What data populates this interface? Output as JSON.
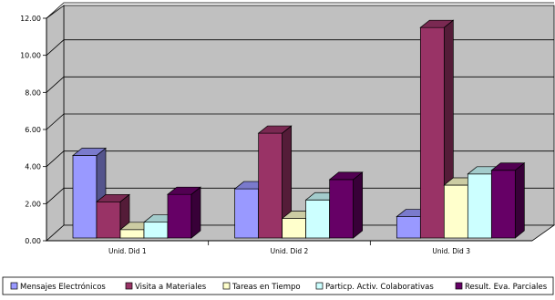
{
  "chart_data": {
    "type": "bar",
    "categories": [
      "Unid. Did 1",
      "Unid. Did 2",
      "Unid. Did 3"
    ],
    "ylim": [
      0,
      12
    ],
    "yticks": [
      "0.00",
      "2.00",
      "4.00",
      "6.00",
      "8.00",
      "10.00",
      "12.00"
    ],
    "ytick_values": [
      0,
      2,
      4,
      6,
      8,
      10,
      12
    ],
    "grid": true,
    "legend_position": "bottom",
    "series": [
      {
        "name": "Mensajes Electrónicos",
        "color": "#9999ff",
        "values": [
          4.6,
          2.8,
          1.3
        ]
      },
      {
        "name": "Visita a Materiales",
        "color": "#993366",
        "values": [
          2.1,
          5.8,
          11.5
        ]
      },
      {
        "name": "Tareas en Tiempo",
        "color": "#ffffcc",
        "values": [
          0.6,
          1.2,
          3.0
        ]
      },
      {
        "name": "Particp. Activ. Colaborativas",
        "color": "#ccffff",
        "values": [
          1.0,
          2.2,
          3.6
        ]
      },
      {
        "name": "Result. Eva. Parciales",
        "color": "#660066",
        "values": [
          2.5,
          3.3,
          3.8
        ]
      }
    ]
  }
}
